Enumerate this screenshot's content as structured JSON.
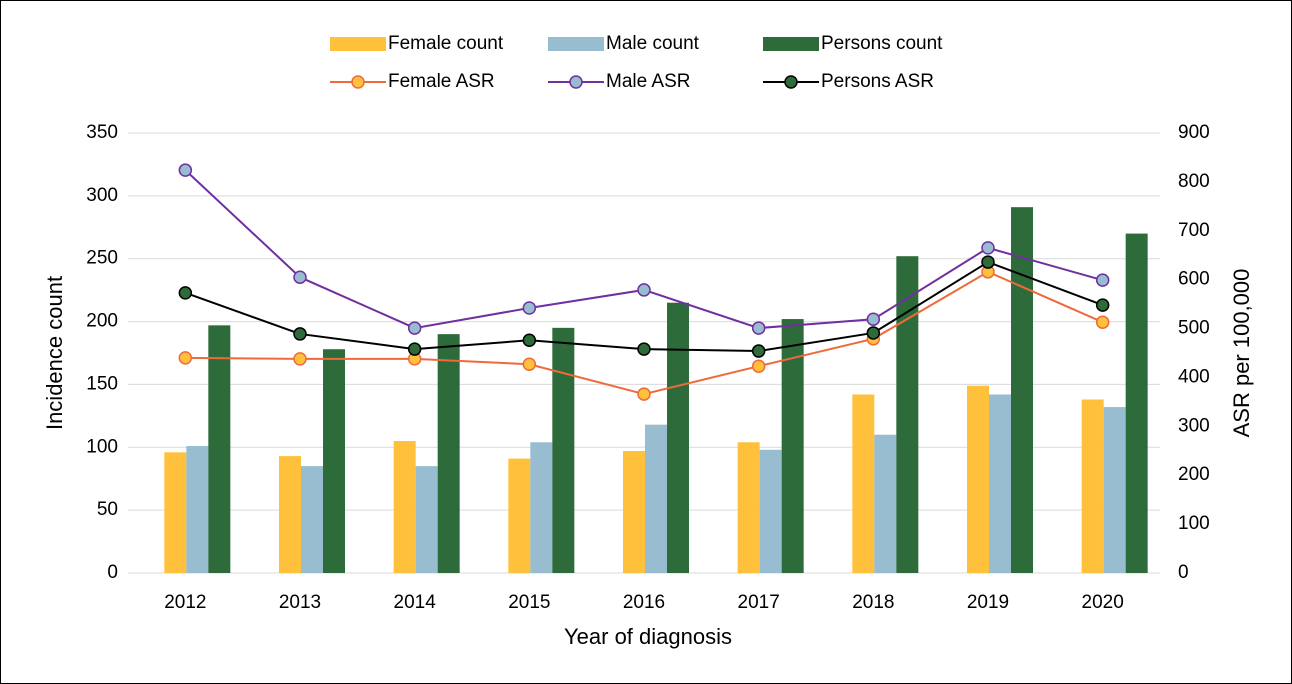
{
  "chart_data": {
    "type": "bar_line",
    "x_label": "Year of diagnosis",
    "y_label": "Incidence count",
    "y2_label": "ASR per 100,000",
    "categories": [
      "2012",
      "2013",
      "2014",
      "2015",
      "2016",
      "2017",
      "2018",
      "2019",
      "2020"
    ],
    "series": [
      {
        "name": "Female count",
        "type": "bar",
        "color": "#FFC13B",
        "values": [
          96,
          93,
          105,
          91,
          97,
          104,
          142,
          149,
          138
        ]
      },
      {
        "name": "Male count",
        "type": "bar",
        "color": "#98BCD0",
        "values": [
          101,
          85,
          85,
          104,
          118,
          98,
          110,
          142,
          132
        ]
      },
      {
        "name": "Persons count",
        "type": "bar",
        "color": "#2E6B3A",
        "values": [
          197,
          178,
          190,
          195,
          215,
          202,
          252,
          291,
          270
        ]
      },
      {
        "name": "Female ASR",
        "type": "line",
        "axis": "y2",
        "color": "#EE6A3C",
        "marker_color": "#FFC13B",
        "values": [
          440,
          438,
          438,
          427,
          366,
          423,
          479,
          616,
          513
        ]
      },
      {
        "name": "Male ASR",
        "type": "line",
        "axis": "y2",
        "color": "#7030A0",
        "marker_color": "#98BCD0",
        "values": [
          824,
          605,
          501,
          542,
          579,
          501,
          519,
          665,
          599
        ]
      },
      {
        "name": "Persons ASR",
        "type": "line",
        "axis": "y2",
        "color": "#000000",
        "marker_color": "#2E6B3A",
        "values": [
          573,
          489,
          458,
          476,
          458,
          454,
          491,
          636,
          548
        ]
      }
    ],
    "ylim": [
      0,
      350
    ],
    "yticks": [
      0,
      50,
      100,
      150,
      200,
      250,
      300,
      350
    ],
    "y2lim": [
      0,
      900
    ],
    "y2ticks": [
      0,
      100,
      200,
      300,
      400,
      500,
      600,
      700,
      800,
      900
    ],
    "grid": true
  }
}
